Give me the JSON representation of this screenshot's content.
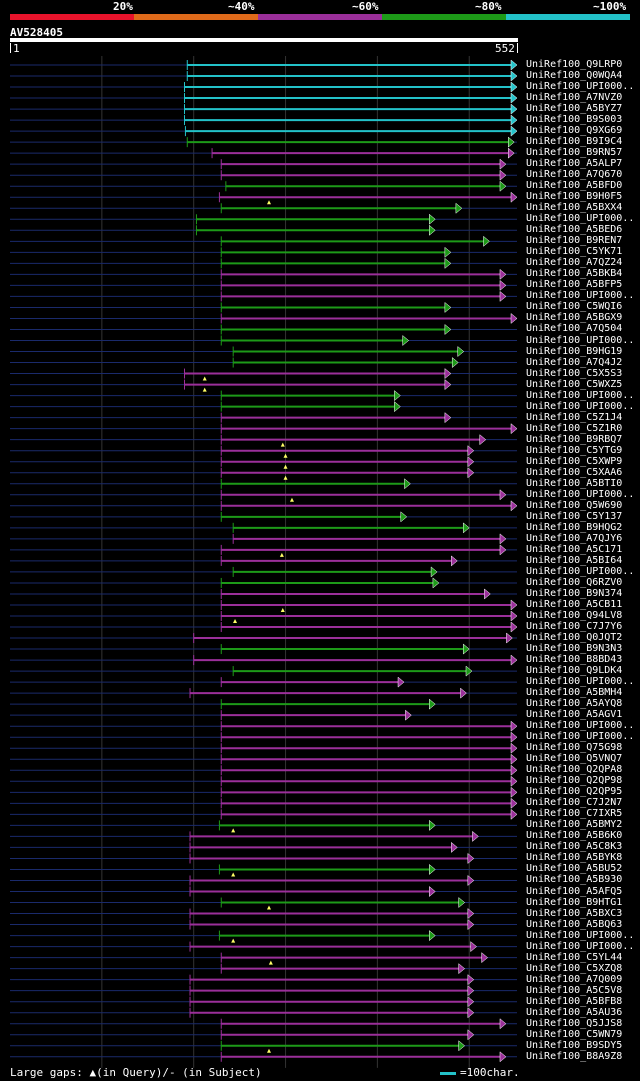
{
  "legend": {
    "thresholds": [
      "20%",
      "~40%",
      "~60%",
      "~80%",
      "~100%"
    ],
    "colors": [
      "#e8132b",
      "#e06a1a",
      "#9b2f9a",
      "#1d9a18",
      "#23c2c9"
    ]
  },
  "query": {
    "id": "AV528405",
    "start": "1",
    "end": "552",
    "length": 552
  },
  "hits": [
    {
      "name": "UniRef100_Q9LRP0",
      "q0": 193,
      "q1": 552,
      "level": 4,
      "gaps": []
    },
    {
      "name": "UniRef100_Q0WQA4",
      "q0": 193,
      "q1": 552,
      "level": 4,
      "gaps": []
    },
    {
      "name": "UniRef100_UPI000..",
      "q0": 190,
      "q1": 552,
      "level": 4,
      "gaps": []
    },
    {
      "name": "UniRef100_A7NVZ0",
      "q0": 190,
      "q1": 552,
      "level": 4,
      "gaps": []
    },
    {
      "name": "UniRef100_A5BYZ7",
      "q0": 190,
      "q1": 552,
      "level": 4,
      "gaps": []
    },
    {
      "name": "UniRef100_B9S003",
      "q0": 190,
      "q1": 552,
      "level": 4,
      "gaps": []
    },
    {
      "name": "UniRef100_Q9XG69",
      "q0": 191,
      "q1": 552,
      "level": 4,
      "gaps": []
    },
    {
      "name": "UniRef100_B9I9C4",
      "q0": 193,
      "q1": 549,
      "level": 3,
      "gaps": []
    },
    {
      "name": "UniRef100_B9RN57",
      "q0": 220,
      "q1": 549,
      "level": 2,
      "gaps": []
    },
    {
      "name": "UniRef100_A5ALP7",
      "q0": 230,
      "q1": 540,
      "level": 2,
      "gaps": []
    },
    {
      "name": "UniRef100_A7Q670",
      "q0": 230,
      "q1": 540,
      "level": 2,
      "gaps": []
    },
    {
      "name": "UniRef100_A5BFD0",
      "q0": 235,
      "q1": 540,
      "level": 3,
      "gaps": []
    },
    {
      "name": "UniRef100_B9H0F5",
      "q0": 228,
      "q1": 552,
      "level": 2,
      "gaps": [
        {
          "q": 282,
          "type": "query"
        }
      ]
    },
    {
      "name": "UniRef100_A5BXX4",
      "q0": 230,
      "q1": 492,
      "level": 3,
      "gaps": []
    },
    {
      "name": "UniRef100_UPI000..",
      "q0": 203,
      "q1": 463,
      "level": 3,
      "gaps": []
    },
    {
      "name": "UniRef100_A5BED6",
      "q0": 203,
      "q1": 463,
      "level": 3,
      "gaps": []
    },
    {
      "name": "UniRef100_B9REN7",
      "q0": 230,
      "q1": 522,
      "level": 3,
      "gaps": []
    },
    {
      "name": "UniRef100_C5YK71",
      "q0": 230,
      "q1": 480,
      "level": 3,
      "gaps": []
    },
    {
      "name": "UniRef100_A7QZ24",
      "q0": 230,
      "q1": 480,
      "level": 3,
      "gaps": []
    },
    {
      "name": "UniRef100_A5BKB4",
      "q0": 230,
      "q1": 540,
      "level": 2,
      "gaps": []
    },
    {
      "name": "UniRef100_A5BFP5",
      "q0": 230,
      "q1": 540,
      "level": 2,
      "gaps": []
    },
    {
      "name": "UniRef100_UPI000..",
      "q0": 230,
      "q1": 540,
      "level": 2,
      "gaps": []
    },
    {
      "name": "UniRef100_C5WQI6",
      "q0": 230,
      "q1": 480,
      "level": 3,
      "gaps": []
    },
    {
      "name": "UniRef100_A5BGX9",
      "q0": 230,
      "q1": 552,
      "level": 2,
      "gaps": []
    },
    {
      "name": "UniRef100_A7Q504",
      "q0": 230,
      "q1": 480,
      "level": 3,
      "gaps": []
    },
    {
      "name": "UniRef100_UPI000..",
      "q0": 230,
      "q1": 434,
      "level": 3,
      "gaps": []
    },
    {
      "name": "UniRef100_B9HG19",
      "q0": 243,
      "q1": 494,
      "level": 3,
      "gaps": []
    },
    {
      "name": "UniRef100_A7Q4J2",
      "q0": 243,
      "q1": 488,
      "level": 3,
      "gaps": []
    },
    {
      "name": "UniRef100_C5X5S3",
      "q0": 190,
      "q1": 480,
      "level": 2,
      "gaps": [
        {
          "q": 212,
          "type": "query"
        }
      ]
    },
    {
      "name": "UniRef100_C5WXZ5",
      "q0": 190,
      "q1": 480,
      "level": 2,
      "gaps": [
        {
          "q": 212,
          "type": "query"
        }
      ]
    },
    {
      "name": "UniRef100_UPI000..",
      "q0": 230,
      "q1": 425,
      "level": 3,
      "gaps": []
    },
    {
      "name": "UniRef100_UPI000..",
      "q0": 230,
      "q1": 425,
      "level": 3,
      "gaps": []
    },
    {
      "name": "UniRef100_C5Z1J4",
      "q0": 230,
      "q1": 480,
      "level": 2,
      "gaps": []
    },
    {
      "name": "UniRef100_C5Z1R0",
      "q0": 230,
      "q1": 552,
      "level": 2,
      "gaps": []
    },
    {
      "name": "UniRef100_B9RBQ7",
      "q0": 230,
      "q1": 518,
      "level": 2,
      "gaps": [
        {
          "q": 297,
          "type": "query"
        }
      ]
    },
    {
      "name": "UniRef100_C5YTG9",
      "q0": 230,
      "q1": 505,
      "level": 2,
      "gaps": [
        {
          "q": 300,
          "type": "query"
        }
      ]
    },
    {
      "name": "UniRef100_C5XWP9",
      "q0": 230,
      "q1": 505,
      "level": 2,
      "gaps": [
        {
          "q": 300,
          "type": "query"
        }
      ]
    },
    {
      "name": "UniRef100_C5XAA6",
      "q0": 230,
      "q1": 505,
      "level": 2,
      "gaps": [
        {
          "q": 300,
          "type": "query"
        }
      ]
    },
    {
      "name": "UniRef100_A5BTI0",
      "q0": 230,
      "q1": 436,
      "level": 3,
      "gaps": []
    },
    {
      "name": "UniRef100_UPI000..",
      "q0": 230,
      "q1": 540,
      "level": 2,
      "gaps": [
        {
          "q": 307,
          "type": "query"
        }
      ]
    },
    {
      "name": "UniRef100_Q5W690",
      "q0": 230,
      "q1": 552,
      "level": 2,
      "gaps": []
    },
    {
      "name": "UniRef100_C5Y137",
      "q0": 230,
      "q1": 432,
      "level": 3,
      "gaps": []
    },
    {
      "name": "UniRef100_B9HQG2",
      "q0": 243,
      "q1": 500,
      "level": 3,
      "gaps": []
    },
    {
      "name": "UniRef100_A7QJY6",
      "q0": 243,
      "q1": 540,
      "level": 2,
      "gaps": []
    },
    {
      "name": "UniRef100_A5C171",
      "q0": 230,
      "q1": 540,
      "level": 2,
      "gaps": [
        {
          "q": 296,
          "type": "query"
        }
      ]
    },
    {
      "name": "UniRef100_A5BI64",
      "q0": 230,
      "q1": 487,
      "level": 2,
      "gaps": []
    },
    {
      "name": "UniRef100_UPI000..",
      "q0": 243,
      "q1": 465,
      "level": 3,
      "gaps": []
    },
    {
      "name": "UniRef100_Q6RZV0",
      "q0": 230,
      "q1": 467,
      "level": 3,
      "gaps": []
    },
    {
      "name": "UniRef100_B9N374",
      "q0": 230,
      "q1": 523,
      "level": 2,
      "gaps": []
    },
    {
      "name": "UniRef100_A5CB11",
      "q0": 230,
      "q1": 552,
      "level": 2,
      "gaps": [
        {
          "q": 297,
          "type": "query"
        }
      ]
    },
    {
      "name": "UniRef100_Q94LV8",
      "q0": 230,
      "q1": 552,
      "level": 2,
      "gaps": [
        {
          "q": 245,
          "type": "query"
        }
      ]
    },
    {
      "name": "UniRef100_C7J7Y6",
      "q0": 230,
      "q1": 552,
      "level": 2,
      "gaps": []
    },
    {
      "name": "UniRef100_Q0JQT2",
      "q0": 200,
      "q1": 547,
      "level": 2,
      "gaps": []
    },
    {
      "name": "UniRef100_B9N3N3",
      "q0": 230,
      "q1": 500,
      "level": 3,
      "gaps": []
    },
    {
      "name": "UniRef100_B8BD43",
      "q0": 200,
      "q1": 552,
      "level": 2,
      "gaps": []
    },
    {
      "name": "UniRef100_Q9LDK4",
      "q0": 243,
      "q1": 503,
      "level": 3,
      "gaps": []
    },
    {
      "name": "UniRef100_UPI000..",
      "q0": 230,
      "q1": 429,
      "level": 2,
      "gaps": []
    },
    {
      "name": "UniRef100_A5BMH4",
      "q0": 196,
      "q1": 497,
      "level": 2,
      "gaps": []
    },
    {
      "name": "UniRef100_A5AYQ8",
      "q0": 230,
      "q1": 463,
      "level": 3,
      "gaps": []
    },
    {
      "name": "UniRef100_A5AGV1",
      "q0": 230,
      "q1": 437,
      "level": 2,
      "gaps": []
    },
    {
      "name": "UniRef100_UPI000..",
      "q0": 230,
      "q1": 552,
      "level": 2,
      "gaps": []
    },
    {
      "name": "UniRef100_UPI000..",
      "q0": 230,
      "q1": 552,
      "level": 2,
      "gaps": []
    },
    {
      "name": "UniRef100_Q75G98",
      "q0": 230,
      "q1": 552,
      "level": 2,
      "gaps": []
    },
    {
      "name": "UniRef100_Q5VNQ7",
      "q0": 230,
      "q1": 552,
      "level": 2,
      "gaps": []
    },
    {
      "name": "UniRef100_Q2QPA8",
      "q0": 230,
      "q1": 552,
      "level": 2,
      "gaps": []
    },
    {
      "name": "UniRef100_Q2QP98",
      "q0": 230,
      "q1": 552,
      "level": 2,
      "gaps": []
    },
    {
      "name": "UniRef100_Q2QP95",
      "q0": 230,
      "q1": 552,
      "level": 2,
      "gaps": []
    },
    {
      "name": "UniRef100_C7J2N7",
      "q0": 230,
      "q1": 552,
      "level": 2,
      "gaps": []
    },
    {
      "name": "UniRef100_C7IXR5",
      "q0": 230,
      "q1": 552,
      "level": 2,
      "gaps": []
    },
    {
      "name": "UniRef100_A5BMY2",
      "q0": 228,
      "q1": 463,
      "level": 3,
      "gaps": [
        {
          "q": 243,
          "type": "query"
        }
      ]
    },
    {
      "name": "UniRef100_A5B6K0",
      "q0": 196,
      "q1": 510,
      "level": 2,
      "gaps": []
    },
    {
      "name": "UniRef100_A5C8K3",
      "q0": 196,
      "q1": 487,
      "level": 2,
      "gaps": []
    },
    {
      "name": "UniRef100_A5BYK8",
      "q0": 196,
      "q1": 505,
      "level": 2,
      "gaps": []
    },
    {
      "name": "UniRef100_A5BU52",
      "q0": 228,
      "q1": 463,
      "level": 3,
      "gaps": [
        {
          "q": 243,
          "type": "query"
        }
      ]
    },
    {
      "name": "UniRef100_A5B930",
      "q0": 196,
      "q1": 505,
      "level": 2,
      "gaps": []
    },
    {
      "name": "UniRef100_A5AFQ5",
      "q0": 196,
      "q1": 463,
      "level": 2,
      "gaps": []
    },
    {
      "name": "UniRef100_B9HTG1",
      "q0": 230,
      "q1": 495,
      "level": 3,
      "gaps": [
        {
          "q": 282,
          "type": "query"
        }
      ]
    },
    {
      "name": "UniRef100_A5BXC3",
      "q0": 196,
      "q1": 505,
      "level": 2,
      "gaps": []
    },
    {
      "name": "UniRef100_A5BQ63",
      "q0": 196,
      "q1": 505,
      "level": 2,
      "gaps": []
    },
    {
      "name": "UniRef100_UPI000..",
      "q0": 228,
      "q1": 463,
      "level": 3,
      "gaps": [
        {
          "q": 243,
          "type": "query"
        }
      ]
    },
    {
      "name": "UniRef100_UPI000..",
      "q0": 196,
      "q1": 508,
      "level": 2,
      "gaps": []
    },
    {
      "name": "UniRef100_C5YL44",
      "q0": 230,
      "q1": 520,
      "level": 2,
      "gaps": [
        {
          "q": 284,
          "type": "query"
        }
      ]
    },
    {
      "name": "UniRef100_C5XZQ8",
      "q0": 230,
      "q1": 495,
      "level": 2,
      "gaps": []
    },
    {
      "name": "UniRef100_A7Q009",
      "q0": 196,
      "q1": 505,
      "level": 2,
      "gaps": []
    },
    {
      "name": "UniRef100_A5C5V8",
      "q0": 196,
      "q1": 505,
      "level": 2,
      "gaps": []
    },
    {
      "name": "UniRef100_A5BFB8",
      "q0": 196,
      "q1": 505,
      "level": 2,
      "gaps": []
    },
    {
      "name": "UniRef100_A5AU36",
      "q0": 196,
      "q1": 505,
      "level": 2,
      "gaps": []
    },
    {
      "name": "UniRef100_Q5JJS8",
      "q0": 230,
      "q1": 540,
      "level": 2,
      "gaps": []
    },
    {
      "name": "UniRef100_C5WN79",
      "q0": 230,
      "q1": 505,
      "level": 2,
      "gaps": []
    },
    {
      "name": "UniRef100_B9SDY5",
      "q0": 230,
      "q1": 495,
      "level": 3,
      "gaps": [
        {
          "q": 282,
          "type": "query"
        }
      ]
    },
    {
      "name": "UniRef100_B8A9Z8",
      "q0": 230,
      "q1": 540,
      "level": 2,
      "gaps": []
    }
  ],
  "footer": {
    "gaps_text": "Large gaps: ▲(in Query)/- (in Subject)",
    "scale_text": "=100char."
  }
}
